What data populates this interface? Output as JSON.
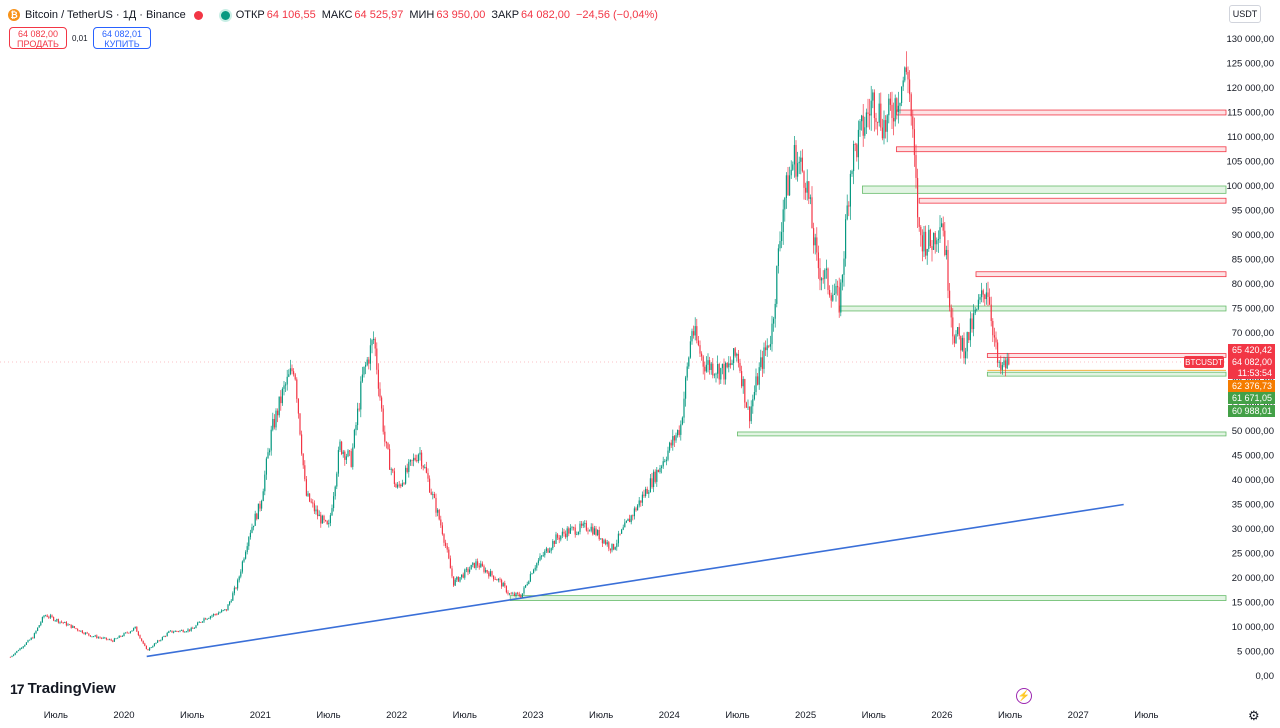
{
  "header": {
    "symbol_title": "Bitcoin / TetherUS · 1Д · Binance",
    "open_label": "ОТКР",
    "open_value": "64 106,55",
    "high_label": "МАКС",
    "high_value": "64 525,97",
    "low_label": "МИН",
    "low_value": "63 950,00",
    "close_label": "ЗАКР",
    "close_value": "64 082,00",
    "change_value": "−24,56 (−0,04%)"
  },
  "trade": {
    "sell_price": "64 082,00",
    "sell_label": "ПРОДАТЬ",
    "spread": "0,01",
    "buy_price": "64 082,01",
    "buy_label": "КУПИТЬ"
  },
  "currency": "USDT",
  "brand": "TradingView",
  "colors": {
    "up": "#089981",
    "down": "#f23645",
    "trendline": "#3a6fd8",
    "resistance": "#f23645",
    "support": "#4caf50"
  },
  "chart_data": {
    "type": "candlestick",
    "series": [
      {
        "name": "BTCUSDT",
        "points": [
          [
            "2019-03",
            3900
          ],
          [
            "2019-05",
            8000
          ],
          [
            "2019-06",
            12500
          ],
          [
            "2019-08",
            10500
          ],
          [
            "2019-10",
            8300
          ],
          [
            "2019-12",
            7200
          ],
          [
            "2020-02",
            9800
          ],
          [
            "2020-03",
            5200
          ],
          [
            "2020-05",
            9000
          ],
          [
            "2020-07",
            9500
          ],
          [
            "2020-08",
            11700
          ],
          [
            "2020-10",
            13500
          ],
          [
            "2020-11",
            19000
          ],
          [
            "2020-12",
            29000
          ],
          [
            "2021-01",
            35000
          ],
          [
            "2021-02",
            50000
          ],
          [
            "2021-03",
            58000
          ],
          [
            "2021-04",
            63500
          ],
          [
            "2021-05",
            37000
          ],
          [
            "2021-06",
            33000
          ],
          [
            "2021-07",
            30000
          ],
          [
            "2021-08",
            47000
          ],
          [
            "2021-09",
            44000
          ],
          [
            "2021-10",
            61000
          ],
          [
            "2021-11",
            69000
          ],
          [
            "2021-12",
            47000
          ],
          [
            "2022-01",
            38000
          ],
          [
            "2022-03",
            46000
          ],
          [
            "2022-05",
            30000
          ],
          [
            "2022-06",
            19000
          ],
          [
            "2022-08",
            23000
          ],
          [
            "2022-10",
            19500
          ],
          [
            "2022-11",
            16500
          ],
          [
            "2022-12",
            16500
          ],
          [
            "2023-01",
            22000
          ],
          [
            "2023-03",
            28000
          ],
          [
            "2023-04",
            29500
          ],
          [
            "2023-06",
            30500
          ],
          [
            "2023-08",
            26000
          ],
          [
            "2023-10",
            34000
          ],
          [
            "2023-12",
            42000
          ],
          [
            "2024-02",
            51000
          ],
          [
            "2024-03",
            71000
          ],
          [
            "2024-04",
            64000
          ],
          [
            "2024-06",
            62000
          ],
          [
            "2024-07",
            66000
          ],
          [
            "2024-08",
            53000
          ],
          [
            "2024-09",
            63000
          ],
          [
            "2024-10",
            70000
          ],
          [
            "2024-11",
            96000
          ],
          [
            "2024-12",
            106000
          ],
          [
            "2025-01",
            102000
          ],
          [
            "2025-02",
            84000
          ],
          [
            "2025-04",
            76000
          ],
          [
            "2025-05",
            105000
          ],
          [
            "2025-07",
            118000
          ],
          [
            "2025-08",
            112000
          ],
          [
            "2025-10",
            124000
          ],
          [
            "2025-11",
            90000
          ],
          [
            "2025-12",
            88000
          ],
          [
            "2026-01",
            94000
          ],
          [
            "2026-02",
            70000
          ],
          [
            "2026-03",
            67000
          ],
          [
            "2026-04",
            74000
          ],
          [
            "2026-05",
            80000
          ],
          [
            "2026-06",
            62000
          ],
          [
            "2026-07",
            64082
          ]
        ]
      }
    ],
    "x_ticks": [
      "Июль",
      "2020",
      "Июль",
      "2021",
      "Июль",
      "2022",
      "Июль",
      "2023",
      "Июль",
      "2024",
      "Июль",
      "2025",
      "Июль",
      "2026",
      "Июль",
      "2027",
      "Июль"
    ],
    "y_ticks": [
      "130 000,00",
      "125 000,00",
      "120 000,00",
      "115 000,00",
      "110 000,00",
      "105 000,00",
      "100 000,00",
      "95 000,00",
      "90 000,00",
      "85 000,00",
      "80 000,00",
      "75 000,00",
      "70 000,00",
      "65 000,00",
      "60 000,00",
      "55 000,00",
      "50 000,00",
      "45 000,00",
      "40 000,00",
      "35 000,00",
      "30 000,00",
      "25 000,00",
      "20 000,00",
      "15 000,00",
      "10 000,00",
      "5 000,00",
      "0,00"
    ],
    "ylim": [
      0,
      130000
    ],
    "price_labels": [
      {
        "text": "65 420,42",
        "value": 65420.42,
        "color": "#f23645"
      },
      {
        "text": "64 082,00",
        "value": 64082,
        "color": "#f23645"
      },
      {
        "text": "11:53:54",
        "value": 62900,
        "color": "#f23645"
      },
      {
        "text": "62 376,73",
        "value": 62376.73,
        "color": "#f57c00"
      },
      {
        "text": "61 671,05",
        "value": 61671.05,
        "color": "#43a047"
      },
      {
        "text": "60 988,01",
        "value": 60988.01,
        "color": "#43a047"
      }
    ],
    "symbol_tag": "BTCUSDT",
    "resistance_zones": [
      {
        "from": "2025-09",
        "low": 114500,
        "high": 115500
      },
      {
        "from": "2025-09",
        "low": 107000,
        "high": 108000
      },
      {
        "from": "2025-11",
        "low": 96500,
        "high": 97500
      },
      {
        "from": "2026-04",
        "low": 81500,
        "high": 82500
      },
      {
        "from": "2026-05",
        "low": 65000,
        "high": 65800
      }
    ],
    "support_zones": [
      {
        "from": "2025-06",
        "low": 98500,
        "high": 100000
      },
      {
        "from": "2025-04",
        "low": 74500,
        "high": 75500
      },
      {
        "from": "2026-05",
        "low": 61200,
        "high": 62000
      },
      {
        "from": "2024-07",
        "low": 49000,
        "high": 49800
      },
      {
        "from": "2022-11",
        "low": 15400,
        "high": 16400
      }
    ],
    "trendline": {
      "from": [
        "2020-03",
        4000
      ],
      "to": [
        "2027-05",
        35000
      ]
    }
  }
}
